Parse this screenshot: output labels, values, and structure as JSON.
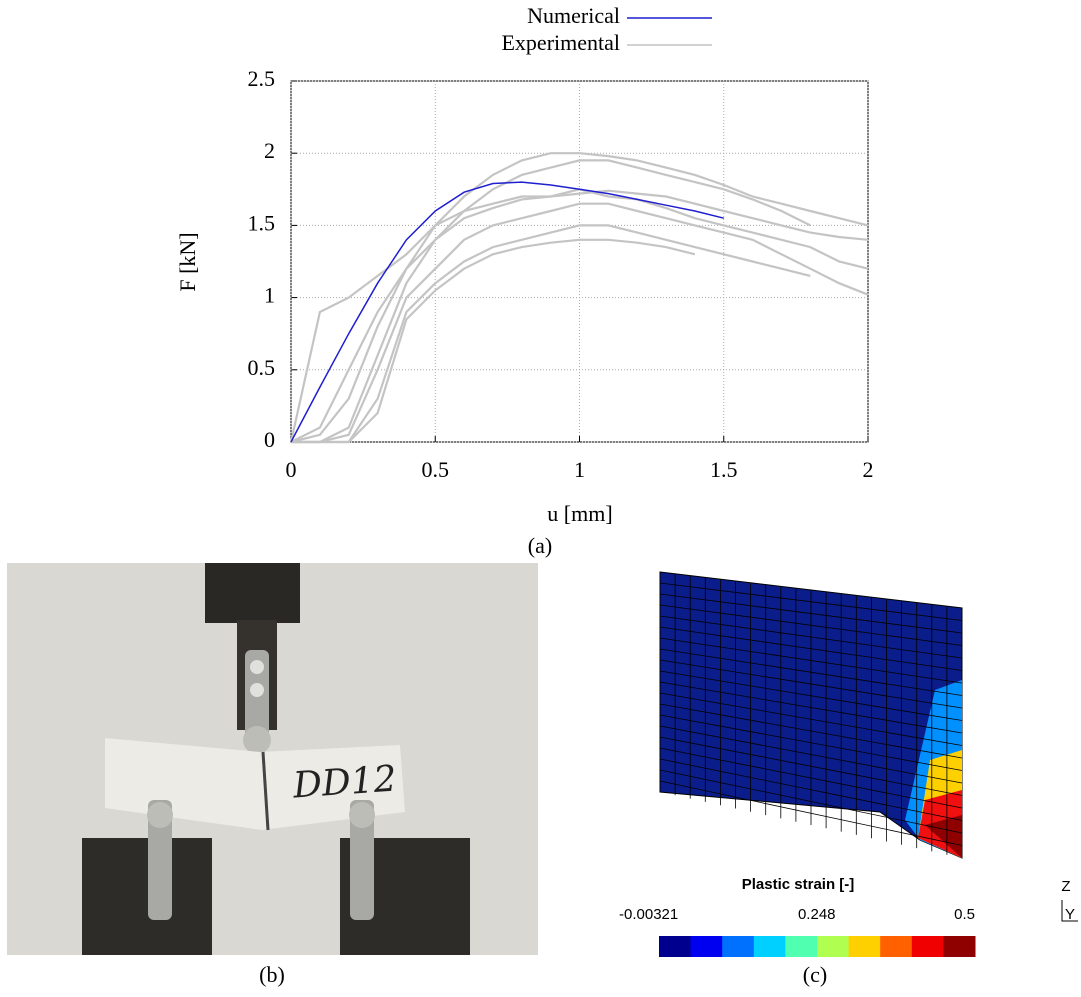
{
  "chart_data": {
    "type": "line",
    "xlabel": "u [mm]",
    "ylabel": "F [kN]",
    "x": [
      0,
      0.1,
      0.2,
      0.3,
      0.4,
      0.5,
      0.6,
      0.7,
      0.8,
      0.9,
      1.0,
      1.1,
      1.2,
      1.3,
      1.4,
      1.5,
      1.6,
      1.7,
      1.8,
      1.9,
      2.0
    ],
    "xlim": [
      0,
      2
    ],
    "xticks": [
      0,
      0.5,
      1,
      1.5,
      2
    ],
    "ylim": [
      0,
      2.5
    ],
    "yticks": [
      0,
      0.5,
      1,
      1.5,
      2,
      2.5
    ],
    "grid": true,
    "series": [
      {
        "name": "Numerical",
        "color": "#1f1fd0",
        "values": [
          0,
          0.38,
          0.75,
          1.1,
          1.4,
          1.6,
          1.73,
          1.79,
          1.8,
          1.78,
          1.75,
          1.72,
          1.68,
          1.64,
          1.6,
          1.55,
          null,
          null,
          null,
          null,
          null
        ]
      },
      {
        "name": "Experimental",
        "color": "#c4c4c4",
        "curves": [
          [
            0,
            0.9,
            1.0,
            1.15,
            1.3,
            1.5,
            1.6,
            1.65,
            1.7,
            1.7,
            1.75,
            1.7,
            1.68,
            1.62,
            1.55,
            1.5,
            1.45,
            1.4,
            1.35,
            1.25,
            1.2
          ],
          [
            0,
            0.05,
            0.3,
            0.8,
            1.2,
            1.5,
            1.7,
            1.85,
            1.95,
            2.0,
            2.0,
            1.98,
            1.95,
            1.9,
            1.85,
            1.78,
            1.7,
            1.65,
            1.6,
            1.55,
            1.5
          ],
          [
            0,
            0,
            0.1,
            0.6,
            1.1,
            1.4,
            1.6,
            1.75,
            1.85,
            1.9,
            1.95,
            1.95,
            1.9,
            1.85,
            1.8,
            1.75,
            1.68,
            1.6,
            1.5,
            null,
            null
          ],
          [
            0,
            0,
            0.05,
            0.5,
            1.0,
            1.2,
            1.4,
            1.5,
            1.55,
            1.6,
            1.65,
            1.65,
            1.6,
            1.55,
            1.5,
            1.45,
            1.4,
            1.3,
            1.2,
            1.1,
            1.02
          ],
          [
            0,
            0,
            0,
            0.3,
            0.9,
            1.1,
            1.25,
            1.35,
            1.4,
            1.45,
            1.5,
            1.5,
            1.45,
            1.4,
            1.35,
            1.3,
            1.25,
            1.2,
            1.15,
            null,
            null
          ],
          [
            0,
            0,
            0,
            0.2,
            0.85,
            1.05,
            1.2,
            1.3,
            1.35,
            1.38,
            1.4,
            1.4,
            1.38,
            1.35,
            1.3,
            null,
            null,
            null,
            null,
            null,
            null
          ],
          [
            0,
            0.1,
            0.5,
            0.9,
            1.2,
            1.4,
            1.55,
            1.62,
            1.68,
            1.7,
            1.72,
            1.74,
            1.72,
            1.7,
            1.65,
            1.6,
            1.55,
            1.5,
            1.45,
            1.42,
            1.4
          ]
        ]
      }
    ],
    "caption": "(a)"
  },
  "panel_b": {
    "caption": "(b)",
    "specimen_label": "DD12"
  },
  "panel_c": {
    "caption": "(c)",
    "colorbar": {
      "title": "Plastic strain [-]",
      "lim": [
        -0.00321,
        0.5
      ],
      "ticks": [
        -0.00321,
        0.248,
        0.5
      ],
      "colors": [
        "#00008f",
        "#0000f0",
        "#0070ff",
        "#00d0ff",
        "#50ffb0",
        "#b0ff50",
        "#ffd000",
        "#ff6000",
        "#f00000",
        "#8f0000"
      ]
    },
    "axes": [
      "Z",
      "Y"
    ]
  }
}
